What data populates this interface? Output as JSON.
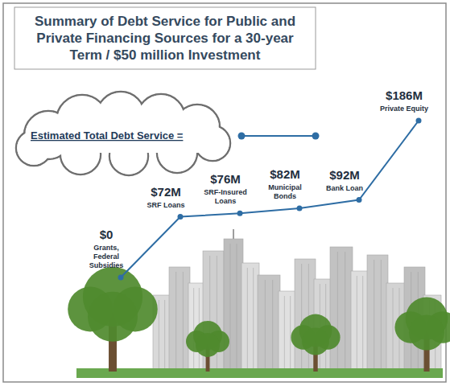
{
  "chart_data": {
    "type": "line",
    "title": "Summary of Debt Service for Public and Private Financing Sources for a 30-year Term / $50 million Investment",
    "categories": [
      "Grants, Federal Subsidies",
      "SRF Loans",
      "SRF-Insured Loans",
      "Municipal Bonds",
      "Bank Loan",
      "Private Equity"
    ],
    "series": [
      {
        "name": "Estimated Total Debt Service =",
        "color": "#2e6da4",
        "marker": "circle",
        "line_style": "solid",
        "values": [
          0,
          72,
          76,
          82,
          92,
          186
        ],
        "value_labels": [
          "$0",
          "$72M",
          "$76M",
          "$82M",
          "$92M",
          "$186M"
        ]
      }
    ],
    "data_labels": true,
    "tick_labels": false,
    "grid": false,
    "legend": "top-left"
  }
}
